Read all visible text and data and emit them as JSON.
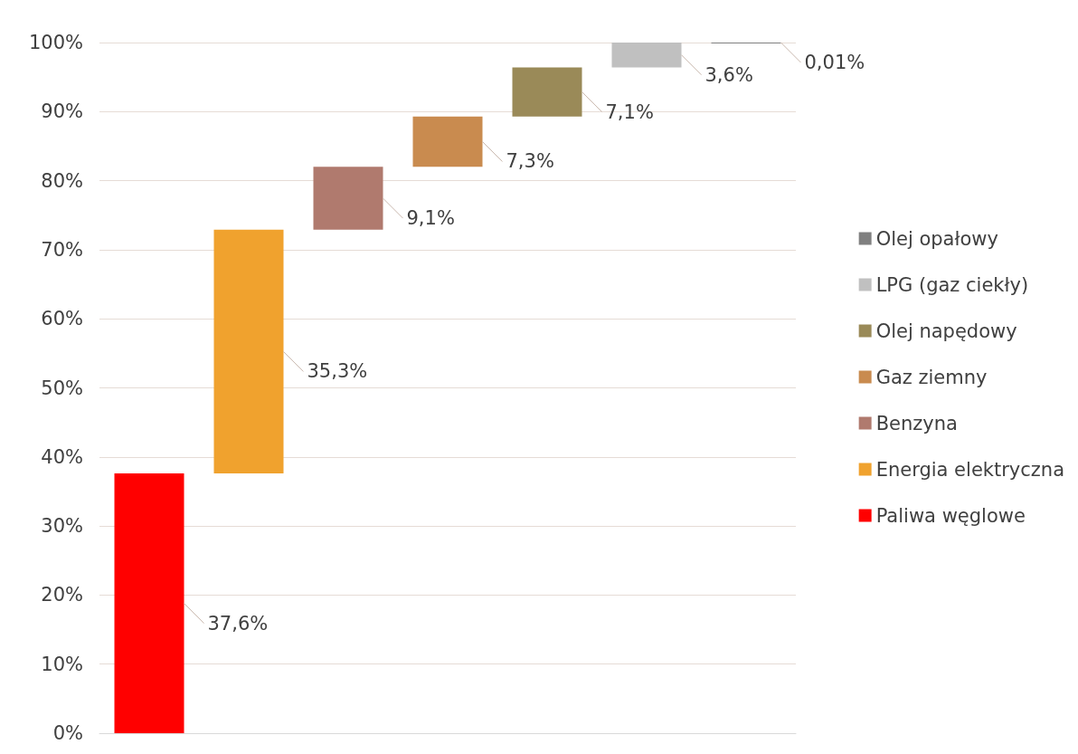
{
  "chart_data": {
    "type": "bar",
    "categories": [
      null,
      null,
      null,
      null,
      null,
      null,
      null
    ],
    "series": [
      {
        "name": "Paliwa węglowe",
        "color": "#ff0000",
        "values": [
          37.6,
          null,
          null,
          null,
          null,
          null,
          null
        ],
        "base": [
          0,
          null,
          null,
          null,
          null,
          null,
          null
        ],
        "value_labels": [
          "37,6%",
          null,
          null,
          null,
          null,
          null,
          null
        ]
      },
      {
        "name": "Energia elektryczna",
        "color": "#f0a22e",
        "values": [
          null,
          35.3,
          null,
          null,
          null,
          null,
          null
        ],
        "base": [
          null,
          37.6,
          null,
          null,
          null,
          null,
          null
        ],
        "value_labels": [
          null,
          "35,3%",
          null,
          null,
          null,
          null,
          null
        ]
      },
      {
        "name": "Benzyna",
        "color": "#b07a6e",
        "values": [
          null,
          null,
          9.1,
          null,
          null,
          null,
          null
        ],
        "base": [
          null,
          null,
          72.9,
          null,
          null,
          null,
          null
        ],
        "value_labels": [
          null,
          null,
          "9,1%",
          null,
          null,
          null,
          null
        ]
      },
      {
        "name": "Gaz ziemny",
        "color": "#c98b4f",
        "values": [
          null,
          null,
          null,
          7.3,
          null,
          null,
          null
        ],
        "base": [
          null,
          null,
          null,
          82,
          null,
          null,
          null
        ],
        "value_labels": [
          null,
          null,
          null,
          "7,3%",
          null,
          null,
          null
        ]
      },
      {
        "name": "Olej napędowy",
        "color": "#9a8a58",
        "values": [
          null,
          null,
          null,
          null,
          7.1,
          null,
          null
        ],
        "base": [
          null,
          null,
          null,
          null,
          89.3,
          null,
          null
        ],
        "value_labels": [
          null,
          null,
          null,
          null,
          "7,1%",
          null,
          null
        ]
      },
      {
        "name": "LPG (gaz ciekły)",
        "color": "#c0c0c0",
        "values": [
          null,
          null,
          null,
          null,
          null,
          3.6,
          null
        ],
        "base": [
          null,
          null,
          null,
          null,
          null,
          96.4,
          null
        ],
        "value_labels": [
          null,
          null,
          null,
          null,
          null,
          "3,6%",
          null
        ]
      },
      {
        "name": "Olej opałowy",
        "color": "#808080",
        "values": [
          null,
          null,
          null,
          null,
          null,
          null,
          0.01
        ],
        "base": [
          null,
          null,
          null,
          null,
          null,
          null,
          99.99
        ],
        "value_labels": [
          null,
          null,
          null,
          null,
          null,
          null,
          "0,01%"
        ]
      }
    ],
    "ylim": [
      0,
      100
    ],
    "yticks": [
      {
        "value": 0,
        "label": "0%"
      },
      {
        "value": 10,
        "label": "10%"
      },
      {
        "value": 20,
        "label": "20%"
      },
      {
        "value": 30,
        "label": "30%"
      },
      {
        "value": 40,
        "label": "40%"
      },
      {
        "value": 50,
        "label": "50%"
      },
      {
        "value": 60,
        "label": "60%"
      },
      {
        "value": 70,
        "label": "70%"
      },
      {
        "value": 80,
        "label": "80%"
      },
      {
        "value": 90,
        "label": "90%"
      },
      {
        "value": 100,
        "label": "100%"
      }
    ],
    "grid": "y",
    "legend": "right"
  }
}
